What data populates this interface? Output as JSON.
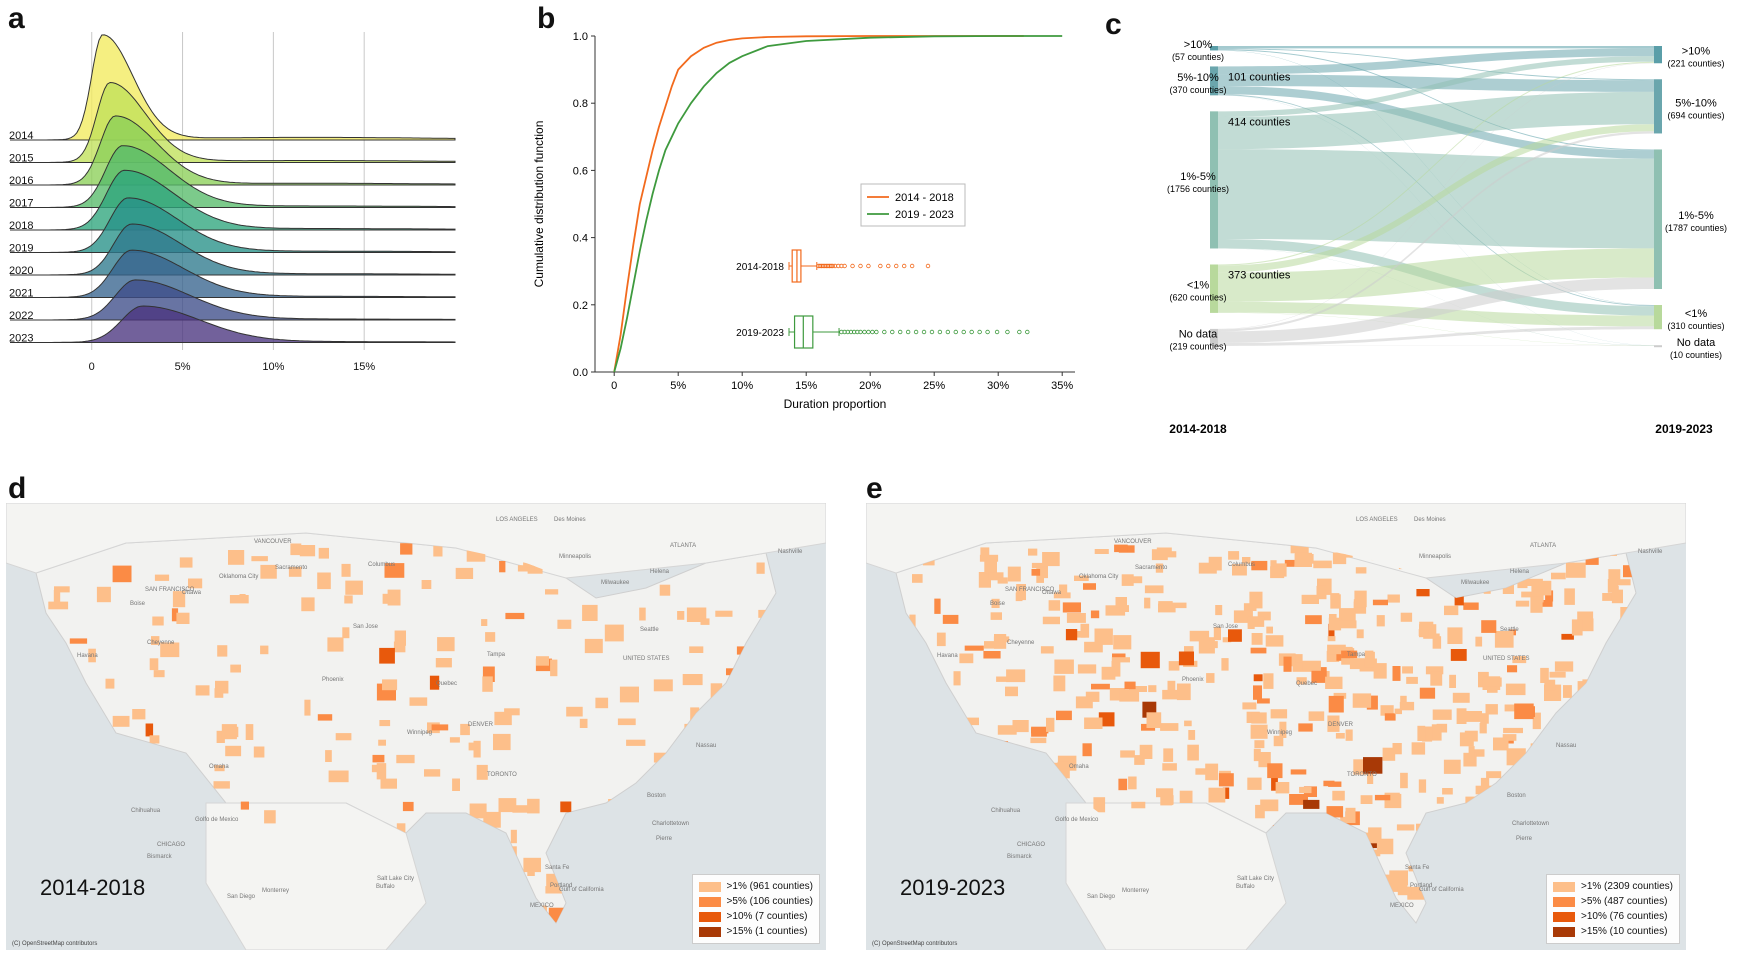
{
  "panels": {
    "a": {
      "letter": "a"
    },
    "b": {
      "letter": "b"
    },
    "c": {
      "letter": "c"
    },
    "d": {
      "letter": "d"
    },
    "e": {
      "letter": "e"
    }
  },
  "colors": {
    "orange": "#f26a1d",
    "green": "#3e9a3e",
    "legend": [
      "#fdbf8a",
      "#fb8b45",
      "#e8590c",
      "#a83906"
    ]
  },
  "chart_data": [
    {
      "id": "a",
      "type": "area",
      "title": "",
      "xlabel": "",
      "ylabel": "",
      "xlim": [
        -0.045,
        0.2
      ],
      "x_tick_values": [
        0,
        0.05,
        0.1,
        0.15
      ],
      "x_tick_labels": [
        "0",
        "5%",
        "10%",
        "15%"
      ],
      "series": [
        {
          "name": "2014",
          "color": "#f2ea5e",
          "mode": 0.006,
          "sd": 0.011,
          "peak": 1.45
        },
        {
          "name": "2015",
          "color": "#c0e05a",
          "mode": 0.01,
          "sd": 0.013,
          "peak": 1.1
        },
        {
          "name": "2016",
          "color": "#8ccf58",
          "mode": 0.013,
          "sd": 0.015,
          "peak": 0.95
        },
        {
          "name": "2017",
          "color": "#57bb6a",
          "mode": 0.017,
          "sd": 0.017,
          "peak": 0.85
        },
        {
          "name": "2018",
          "color": "#2ea57c",
          "mode": 0.018,
          "sd": 0.018,
          "peak": 0.82
        },
        {
          "name": "2019",
          "color": "#279188",
          "mode": 0.02,
          "sd": 0.018,
          "peak": 0.75
        },
        {
          "name": "2020",
          "color": "#2e7a8d",
          "mode": 0.022,
          "sd": 0.018,
          "peak": 0.7
        },
        {
          "name": "2021",
          "color": "#37648e",
          "mode": 0.022,
          "sd": 0.019,
          "peak": 0.65
        },
        {
          "name": "2022",
          "color": "#3e4d89",
          "mode": 0.024,
          "sd": 0.02,
          "peak": 0.55
        },
        {
          "name": "2023",
          "color": "#4a357f",
          "mode": 0.028,
          "sd": 0.021,
          "peak": 0.5
        }
      ]
    },
    {
      "id": "b",
      "type": "line",
      "title": "",
      "xlabel": "Duration proportion",
      "ylabel": "Cumulative distribution function",
      "xlim": [
        -0.015,
        0.36
      ],
      "ylim": [
        0,
        1.0
      ],
      "x_tick_values": [
        0,
        0.05,
        0.1,
        0.15,
        0.2,
        0.25,
        0.3,
        0.35
      ],
      "x_tick_labels": [
        "0",
        "5%",
        "10%",
        "15%",
        "20%",
        "25%",
        "30%",
        "35%"
      ],
      "y_tick_values": [
        0,
        0.2,
        0.4,
        0.6,
        0.8,
        1.0
      ],
      "y_tick_labels": [
        "0.0",
        "0.2",
        "0.4",
        "0.6",
        "0.8",
        "1.0"
      ],
      "series": [
        {
          "name": "2014 - 2018",
          "color": "#f26a1d",
          "x": [
            0,
            0.005,
            0.01,
            0.015,
            0.02,
            0.025,
            0.03,
            0.035,
            0.04,
            0.045,
            0.05,
            0.055,
            0.06,
            0.07,
            0.08,
            0.09,
            0.1,
            0.12,
            0.15,
            0.2,
            0.25,
            0.3,
            0.32
          ],
          "y": [
            0,
            0.11,
            0.25,
            0.38,
            0.5,
            0.58,
            0.66,
            0.73,
            0.79,
            0.85,
            0.9,
            0.92,
            0.94,
            0.965,
            0.98,
            0.988,
            0.993,
            0.997,
            0.999,
            1.0,
            1.0,
            1.0,
            1.0
          ]
        },
        {
          "name": "2019 - 2023",
          "color": "#3e9a3e",
          "x": [
            0,
            0.005,
            0.01,
            0.015,
            0.02,
            0.025,
            0.03,
            0.035,
            0.04,
            0.045,
            0.05,
            0.055,
            0.06,
            0.07,
            0.08,
            0.09,
            0.1,
            0.12,
            0.15,
            0.2,
            0.25,
            0.3,
            0.35
          ],
          "y": [
            0,
            0.07,
            0.16,
            0.26,
            0.36,
            0.45,
            0.53,
            0.6,
            0.66,
            0.7,
            0.74,
            0.77,
            0.8,
            0.85,
            0.89,
            0.92,
            0.94,
            0.97,
            0.985,
            0.995,
            0.999,
            1.0,
            1.0
          ]
        }
      ],
      "legend": "center-right",
      "boxplots": [
        {
          "label": "2014-2018",
          "color": "#f26a1d",
          "whisker_low": 0.0,
          "q1": 0.004,
          "median": 0.01,
          "q3": 0.015,
          "whisker_high": 0.035,
          "outliers": [
            0.037,
            0.039,
            0.041,
            0.043,
            0.045,
            0.047,
            0.049,
            0.051,
            0.053,
            0.055,
            0.058,
            0.062,
            0.066,
            0.07,
            0.08,
            0.09,
            0.1,
            0.115,
            0.125,
            0.135,
            0.145,
            0.155,
            0.175
          ]
        },
        {
          "label": "2019-2023",
          "color": "#3e9a3e",
          "whisker_low": 0.0,
          "q1": 0.007,
          "median": 0.018,
          "q3": 0.03,
          "whisker_high": 0.063,
          "outliers": [
            0.066,
            0.07,
            0.074,
            0.078,
            0.082,
            0.086,
            0.09,
            0.095,
            0.1,
            0.105,
            0.11,
            0.12,
            0.13,
            0.14,
            0.15,
            0.16,
            0.17,
            0.18,
            0.19,
            0.2,
            0.21,
            0.22,
            0.23,
            0.24,
            0.25,
            0.262,
            0.275,
            0.29,
            0.3
          ]
        }
      ],
      "boxplot_scale": {
        "low": 0.0,
        "high": 0.35,
        "x_range": [
          0.21,
          0.35
        ]
      }
    },
    {
      "id": "c",
      "type": "sankey",
      "left_title": "2014-2018",
      "right_title": "2019-2023",
      "left_nodes": [
        {
          "id": "L10",
          "label": ">10%",
          "count": "(57 counties)",
          "value": 57,
          "color": "#5a9ea8"
        },
        {
          "id": "L5",
          "label": "5%-10%",
          "count": "(370 counties)",
          "value": 370,
          "color": "#6aa6ad"
        },
        {
          "id": "L1",
          "label": "1%-5%",
          "count": "(1756 counties)",
          "value": 1756,
          "color": "#8fc0b2"
        },
        {
          "id": "L0",
          "label": "<1%",
          "count": "(620 counties)",
          "value": 620,
          "color": "#b8d99c"
        },
        {
          "id": "LN",
          "label": "No data",
          "count": "(219 counties)",
          "value": 219,
          "color": "#cccccc"
        }
      ],
      "right_nodes": [
        {
          "id": "R10",
          "label": ">10%",
          "count": "(221 counties)",
          "value": 221,
          "color": "#5a9ea8"
        },
        {
          "id": "R5",
          "label": "5%-10%",
          "count": "(694 counties)",
          "value": 694,
          "color": "#6aa6ad"
        },
        {
          "id": "R1",
          "label": "1%-5%",
          "count": "(1787 counties)",
          "value": 1787,
          "color": "#8fc0b2"
        },
        {
          "id": "R0",
          "label": "<1%",
          "count": "(310 counties)",
          "value": 310,
          "color": "#b8d99c"
        },
        {
          "id": "RN",
          "label": "No data",
          "count": "(10 counties)",
          "value": 10,
          "color": "#cccccc"
        }
      ],
      "links": [
        {
          "source": "L10",
          "target": "R10",
          "value": 30
        },
        {
          "source": "L10",
          "target": "R5",
          "value": 12
        },
        {
          "source": "L10",
          "target": "R1",
          "value": 12
        },
        {
          "source": "L10",
          "target": "R0",
          "value": 3
        },
        {
          "source": "L5",
          "target": "R10",
          "value": 101
        },
        {
          "source": "L5",
          "target": "R5",
          "value": 150
        },
        {
          "source": "L5",
          "target": "R1",
          "value": 105
        },
        {
          "source": "L5",
          "target": "R0",
          "value": 12
        },
        {
          "source": "L5",
          "target": "RN",
          "value": 2
        },
        {
          "source": "L1",
          "target": "R10",
          "value": 70
        },
        {
          "source": "L1",
          "target": "R5",
          "value": 414
        },
        {
          "source": "L1",
          "target": "R1",
          "value": 1150
        },
        {
          "source": "L1",
          "target": "R0",
          "value": 120
        },
        {
          "source": "L1",
          "target": "RN",
          "value": 2
        },
        {
          "source": "L0",
          "target": "R10",
          "value": 15
        },
        {
          "source": "L0",
          "target": "R5",
          "value": 90
        },
        {
          "source": "L0",
          "target": "R1",
          "value": 373
        },
        {
          "source": "L0",
          "target": "R0",
          "value": 139
        },
        {
          "source": "L0",
          "target": "RN",
          "value": 3
        },
        {
          "source": "LN",
          "target": "R10",
          "value": 5
        },
        {
          "source": "LN",
          "target": "R5",
          "value": 28
        },
        {
          "source": "LN",
          "target": "R1",
          "value": 147
        },
        {
          "source": "LN",
          "target": "R0",
          "value": 36
        },
        {
          "source": "LN",
          "target": "RN",
          "value": 3
        }
      ],
      "flow_labels": [
        {
          "text": "101 counties",
          "source": "L5",
          "target": "R10"
        },
        {
          "text": "414 counties",
          "source": "L1",
          "target": "R5"
        },
        {
          "text": "373 counties",
          "source": "L0",
          "target": "R1"
        }
      ]
    }
  ],
  "maps": {
    "d": {
      "year_label": "2014-2018",
      "attribution": "(C) OpenStreetMap contributors",
      "legend": [
        ">1% (961 counties)",
        ">5% (106 counties)",
        ">10% (7 counties)",
        ">15% (1 counties)"
      ],
      "places": [
        "VANCOUVER",
        "Seattle",
        "Portland",
        "Boise",
        "Helena",
        "Bismarck",
        "Pierre",
        "Winnipeg",
        "Minneapolis",
        "Milwaukee",
        "CHICAGO",
        "Des Moines",
        "Omaha",
        "Cheyenne",
        "Salt Lake City",
        "DENVER",
        "UNITED STATES",
        "Sacramento",
        "SAN FRANCISCO",
        "San Jose",
        "LOS ANGELES",
        "San Diego",
        "Phoenix",
        "Santa Fe",
        "Oklahoma City",
        "Nashville",
        "ATLANTA",
        "Columbus",
        "TORONTO",
        "Buffalo",
        "Ottawa",
        "Quebec",
        "Charlottetown",
        "Boston",
        "Chihuahua",
        "Monterrey",
        "MEXICO",
        "Gulf of California",
        "Golfo de Mexico",
        "Havana",
        "Tampa",
        "Nassau"
      ]
    },
    "e": {
      "year_label": "2019-2023",
      "attribution": "(C) OpenStreetMap contributors",
      "legend": [
        ">1% (2309 counties)",
        ">5% (487 counties)",
        ">10% (76 counties)",
        ">15% (10 counties)"
      ],
      "places": [
        "VANCOUVER",
        "Seattle",
        "Portland",
        "Boise",
        "Helena",
        "Bismarck",
        "Pierre",
        "Winnipeg",
        "Minneapolis",
        "Milwaukee",
        "CHICAGO",
        "Des Moines",
        "Omaha",
        "Cheyenne",
        "Salt Lake City",
        "DENVER",
        "UNITED STATES",
        "Sacramento",
        "SAN FRANCISCO",
        "San Jose",
        "LOS ANGELES",
        "San Diego",
        "Phoenix",
        "Santa Fe",
        "Oklahoma City",
        "Nashville",
        "ATLANTA",
        "Columbus",
        "TORONTO",
        "Buffalo",
        "Ottawa",
        "Quebec",
        "Charlottetown",
        "Boston",
        "Chihuahua",
        "Monterrey",
        "MEXICO",
        "Gulf of California",
        "Golfo de Mexico",
        "Havana",
        "Tampa",
        "Nassau"
      ]
    }
  }
}
